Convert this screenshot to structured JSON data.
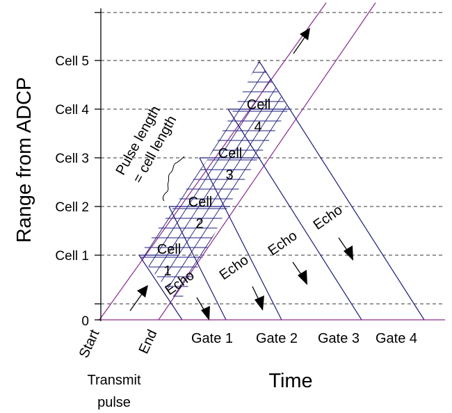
{
  "y_axis": {
    "title": "Range from ADCP",
    "zero_label": "0",
    "cell_labels": [
      "Cell 1",
      "Cell 2",
      "Cell 3",
      "Cell 4",
      "Cell 5"
    ]
  },
  "x_axis": {
    "title": "Time",
    "start_label": "Start",
    "end_label": "End",
    "transmit_label_line1": "Transmit",
    "transmit_label_line2": "pulse",
    "gate_labels": [
      "Gate 1",
      "Gate 2",
      "Gate 3",
      "Gate 4"
    ]
  },
  "pulse_annotation": {
    "line1": "Pulse length",
    "line2": "= cell length"
  },
  "cells": [
    {
      "word": "Cell",
      "number": "1"
    },
    {
      "word": "Cell",
      "number": "2"
    },
    {
      "word": "Cell",
      "number": "3"
    },
    {
      "word": "Cell",
      "number": "4"
    }
  ],
  "echo_label": "Echo",
  "colors": {
    "pulse_lines": "#8b2a8b",
    "echo_lines": "#1a1a7a",
    "grid": "#333333"
  }
}
